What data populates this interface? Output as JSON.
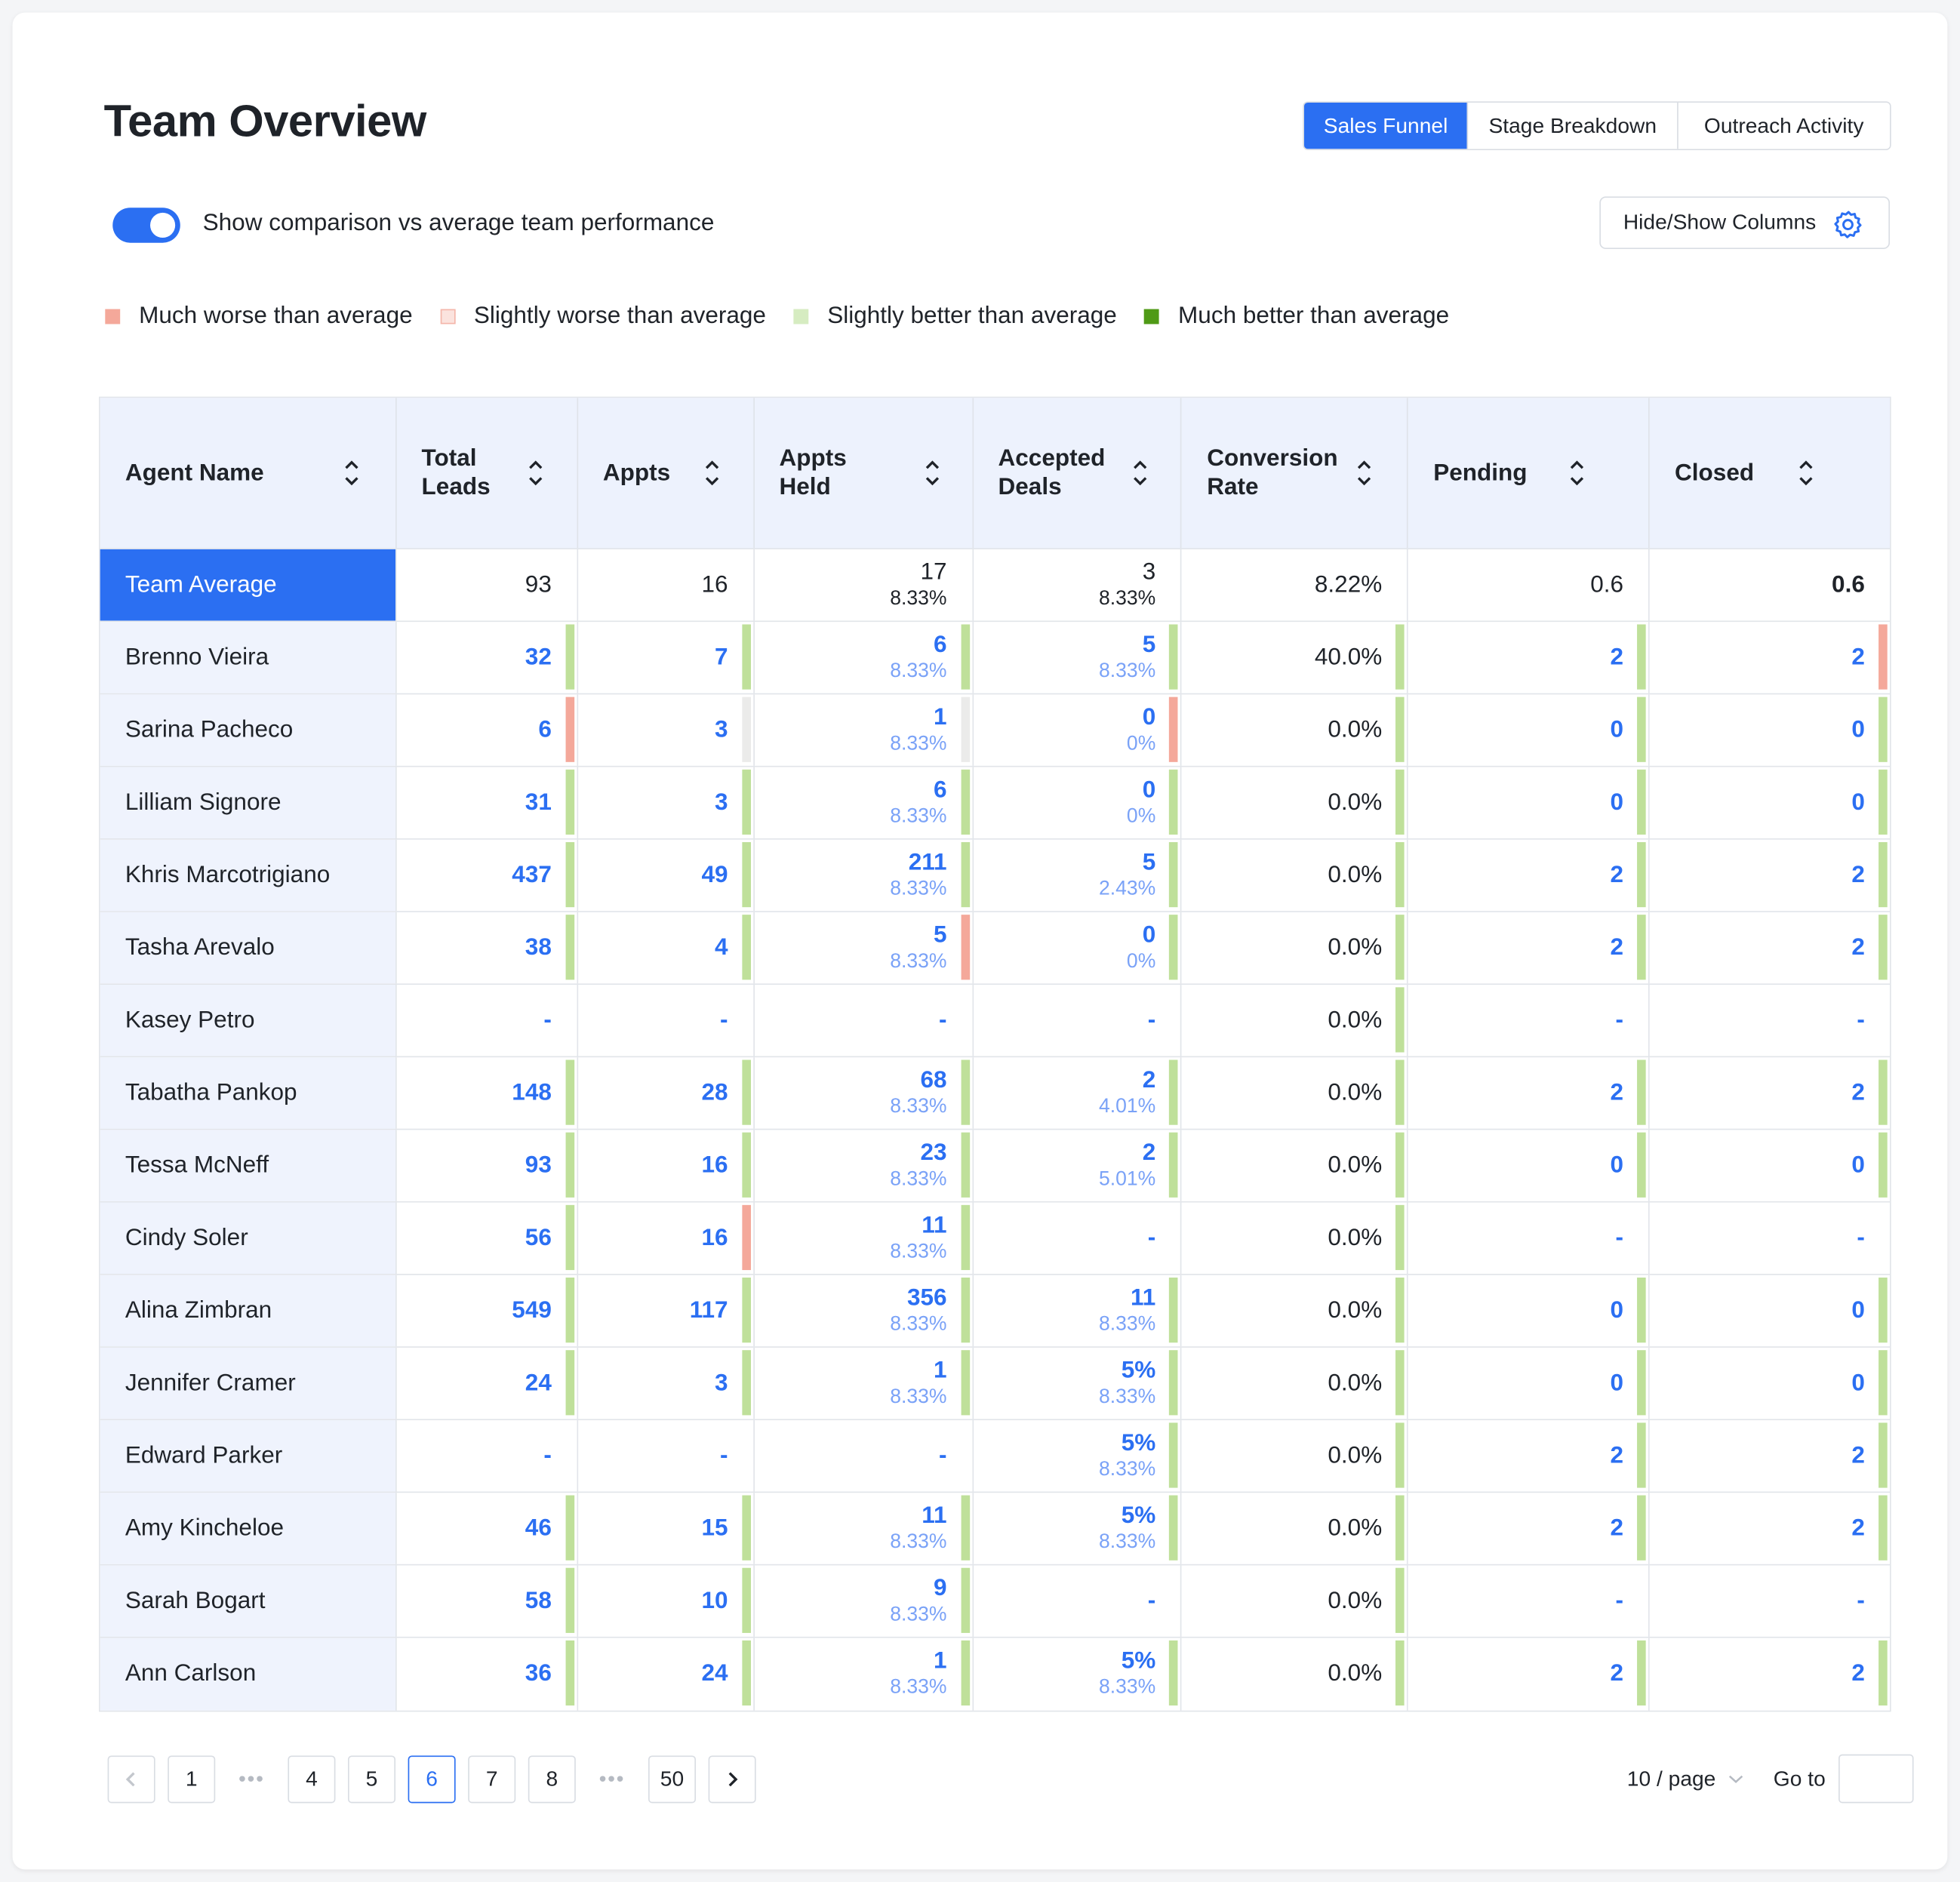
{
  "title": "Team Overview",
  "tabs": [
    {
      "label": "Sales Funnel",
      "active": true
    },
    {
      "label": "Stage Breakdown",
      "active": false
    },
    {
      "label": "Outreach Activity",
      "active": false
    }
  ],
  "toggle": {
    "label": "Show comparison vs average team performance",
    "on": true
  },
  "hide_show_label": "Hide/Show Columns",
  "legend": [
    {
      "label": "Much worse than average",
      "color": "#f4a89a"
    },
    {
      "label": "Slightly worse than average",
      "color": "#fbe3de"
    },
    {
      "label": "Slightly better than average",
      "color": "#d6ecc1"
    },
    {
      "label": "Much better than average",
      "color": "#4f9a16"
    }
  ],
  "colors": {
    "accent": "#2b6ff2",
    "bar_much_worse": "#f4a89a",
    "bar_slightly_worse": "#ebebea",
    "bar_slightly_better": "#bfe09a"
  },
  "columns": [
    "Agent Name",
    "Total Leads",
    "Appts",
    "Appts Held",
    "Accepted Deals",
    "Conversion Rate",
    "Pending",
    "Closed"
  ],
  "team_average": {
    "name": "Team Average",
    "cells": [
      {
        "v": "93"
      },
      {
        "v": "16"
      },
      {
        "v": "17",
        "s": "8.33%"
      },
      {
        "v": "3",
        "s": "8.33%"
      },
      {
        "v": "8.22%"
      },
      {
        "v": "0.6"
      },
      {
        "v": "0.6",
        "bold": true
      }
    ]
  },
  "rows": [
    {
      "name": "Brenno Vieira",
      "cells": [
        {
          "v": "32",
          "bar": "g"
        },
        {
          "v": "7",
          "bar": "g"
        },
        {
          "v": "6",
          "s": "8.33%",
          "bar": "g"
        },
        {
          "v": "5",
          "s": "8.33%",
          "bar": "g"
        },
        {
          "v": "40.0%",
          "bar": "g"
        },
        {
          "v": "2",
          "bar": "g"
        },
        {
          "v": "2",
          "bar": "r"
        }
      ]
    },
    {
      "name": "Sarina Pacheco",
      "cells": [
        {
          "v": "6",
          "bar": "r"
        },
        {
          "v": "3",
          "bar": "n"
        },
        {
          "v": "1",
          "s": "8.33%",
          "bar": "n"
        },
        {
          "v": "0",
          "s": "0%",
          "bar": "r"
        },
        {
          "v": "0.0%",
          "bar": "g"
        },
        {
          "v": "0",
          "bar": "g"
        },
        {
          "v": "0",
          "bar": "g"
        }
      ]
    },
    {
      "name": "Lilliam Signore",
      "cells": [
        {
          "v": "31",
          "bar": "g"
        },
        {
          "v": "3",
          "bar": "g"
        },
        {
          "v": "6",
          "s": "8.33%",
          "bar": "g"
        },
        {
          "v": "0",
          "s": "0%",
          "bar": "g"
        },
        {
          "v": "0.0%",
          "bar": "g"
        },
        {
          "v": "0",
          "bar": "g"
        },
        {
          "v": "0",
          "bar": "g"
        }
      ]
    },
    {
      "name": "Khris Marcotrigiano",
      "cells": [
        {
          "v": "437",
          "bar": "g"
        },
        {
          "v": "49",
          "bar": "g"
        },
        {
          "v": "211",
          "s": "8.33%",
          "bar": "g"
        },
        {
          "v": "5",
          "s": "2.43%",
          "bar": "g"
        },
        {
          "v": "0.0%",
          "bar": "g"
        },
        {
          "v": "2",
          "bar": "g"
        },
        {
          "v": "2",
          "bar": "g"
        }
      ]
    },
    {
      "name": "Tasha Arevalo",
      "cells": [
        {
          "v": "38",
          "bar": "g"
        },
        {
          "v": "4",
          "bar": "g"
        },
        {
          "v": "5",
          "s": "8.33%",
          "bar": "r"
        },
        {
          "v": "0",
          "s": "0%",
          "bar": "g"
        },
        {
          "v": "0.0%",
          "bar": "g"
        },
        {
          "v": "2",
          "bar": "g"
        },
        {
          "v": "2",
          "bar": "g"
        }
      ]
    },
    {
      "name": "Kasey Petro",
      "cells": [
        {
          "v": "-"
        },
        {
          "v": "-"
        },
        {
          "v": "-"
        },
        {
          "v": "-"
        },
        {
          "v": "0.0%",
          "bar": "g"
        },
        {
          "v": "-"
        },
        {
          "v": "-"
        }
      ]
    },
    {
      "name": "Tabatha Pankop",
      "cells": [
        {
          "v": "148",
          "bar": "g"
        },
        {
          "v": "28",
          "bar": "g"
        },
        {
          "v": "68",
          "s": "8.33%",
          "bar": "g"
        },
        {
          "v": "2",
          "s": "4.01%",
          "bar": "g"
        },
        {
          "v": "0.0%",
          "bar": "g"
        },
        {
          "v": "2",
          "bar": "g"
        },
        {
          "v": "2",
          "bar": "g"
        }
      ]
    },
    {
      "name": "Tessa McNeff",
      "cells": [
        {
          "v": "93",
          "bar": "g"
        },
        {
          "v": "16",
          "bar": "g"
        },
        {
          "v": "23",
          "s": "8.33%",
          "bar": "g"
        },
        {
          "v": "2",
          "s": "5.01%",
          "bar": "g"
        },
        {
          "v": "0.0%",
          "bar": "g"
        },
        {
          "v": "0",
          "bar": "g"
        },
        {
          "v": "0",
          "bar": "g"
        }
      ]
    },
    {
      "name": "Cindy Soler",
      "cells": [
        {
          "v": "56",
          "bar": "g"
        },
        {
          "v": "16",
          "bar": "r"
        },
        {
          "v": "11",
          "s": "8.33%",
          "bar": "g"
        },
        {
          "v": "-"
        },
        {
          "v": "0.0%",
          "bar": "g"
        },
        {
          "v": "-"
        },
        {
          "v": "-"
        }
      ]
    },
    {
      "name": "Alina Zimbran",
      "cells": [
        {
          "v": "549",
          "bar": "g"
        },
        {
          "v": "117",
          "bar": "g"
        },
        {
          "v": "356",
          "s": "8.33%",
          "bar": "g"
        },
        {
          "v": "11",
          "s": "8.33%",
          "bar": "g"
        },
        {
          "v": "0.0%",
          "bar": "g"
        },
        {
          "v": "0",
          "bar": "g"
        },
        {
          "v": "0",
          "bar": "g"
        }
      ]
    },
    {
      "name": "Jennifer Cramer",
      "cells": [
        {
          "v": "24",
          "bar": "g"
        },
        {
          "v": "3",
          "bar": "g"
        },
        {
          "v": "1",
          "s": "8.33%",
          "bar": "g"
        },
        {
          "v": "5%",
          "s": "8.33%",
          "bar": "g"
        },
        {
          "v": "0.0%",
          "bar": "g"
        },
        {
          "v": "0",
          "bar": "g"
        },
        {
          "v": "0",
          "bar": "g"
        }
      ]
    },
    {
      "name": "Edward Parker",
      "cells": [
        {
          "v": "-"
        },
        {
          "v": "-"
        },
        {
          "v": "-"
        },
        {
          "v": "5%",
          "s": "8.33%",
          "bar": "g"
        },
        {
          "v": "0.0%",
          "bar": "g"
        },
        {
          "v": "2",
          "bar": "g"
        },
        {
          "v": "2",
          "bar": "g"
        }
      ]
    },
    {
      "name": "Amy Kincheloe",
      "cells": [
        {
          "v": "46",
          "bar": "g"
        },
        {
          "v": "15",
          "bar": "g"
        },
        {
          "v": "11",
          "s": "8.33%",
          "bar": "g"
        },
        {
          "v": "5%",
          "s": "8.33%",
          "bar": "g"
        },
        {
          "v": "0.0%",
          "bar": "g"
        },
        {
          "v": "2",
          "bar": "g"
        },
        {
          "v": "2",
          "bar": "g"
        }
      ]
    },
    {
      "name": "Sarah Bogart",
      "cells": [
        {
          "v": "58",
          "bar": "g"
        },
        {
          "v": "10",
          "bar": "g"
        },
        {
          "v": "9",
          "s": "8.33%",
          "bar": "g"
        },
        {
          "v": "-"
        },
        {
          "v": "0.0%",
          "bar": "g"
        },
        {
          "v": "-"
        },
        {
          "v": "-"
        }
      ]
    },
    {
      "name": "Ann Carlson",
      "cells": [
        {
          "v": "36",
          "bar": "g"
        },
        {
          "v": "24",
          "bar": "g"
        },
        {
          "v": "1",
          "s": "8.33%",
          "bar": "g"
        },
        {
          "v": "5%",
          "s": "8.33%",
          "bar": "g"
        },
        {
          "v": "0.0%",
          "bar": "g"
        },
        {
          "v": "2",
          "bar": "g"
        },
        {
          "v": "2",
          "bar": "g"
        }
      ]
    }
  ],
  "pagination": {
    "items": [
      "prev",
      "1",
      "...",
      "4",
      "5",
      "6",
      "7",
      "8",
      "...",
      "50",
      "next"
    ],
    "current": "6",
    "page_size": "10 / page",
    "goto_label": "Go to",
    "goto_value": ""
  }
}
